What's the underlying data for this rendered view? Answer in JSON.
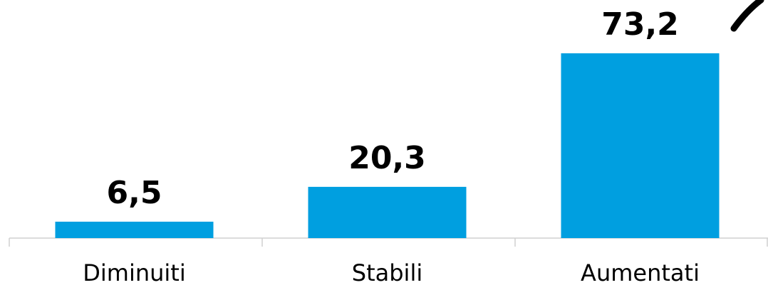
{
  "chart_data": {
    "type": "bar",
    "categories": [
      "Diminuiti",
      "Stabili",
      "Aumentati"
    ],
    "values": [
      6.5,
      20.3,
      73.2
    ],
    "value_labels": [
      "6,5",
      "20,3",
      "73,2"
    ],
    "color": "#009fe0"
  }
}
